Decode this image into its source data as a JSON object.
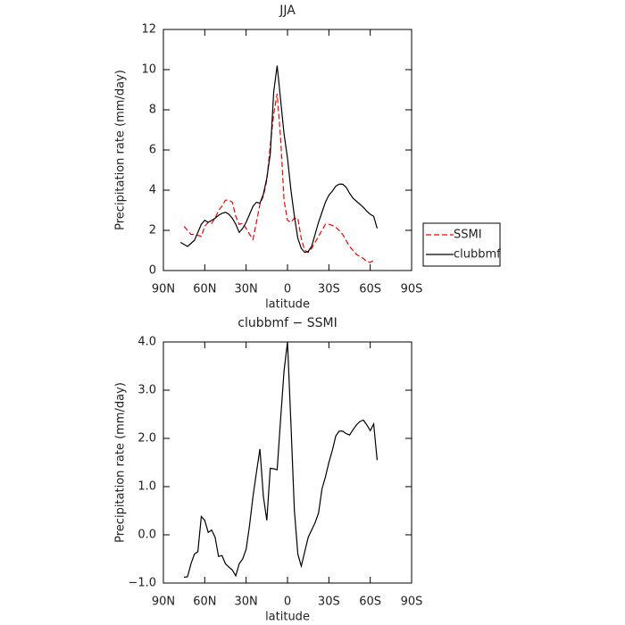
{
  "chart_data": [
    {
      "type": "line",
      "title": "JJA",
      "xlabel": "latitude",
      "ylabel": "Precipitation rate (mm/day)",
      "x": [
        77.5,
        75,
        72.5,
        70,
        67.5,
        65,
        62.5,
        60,
        57.5,
        55,
        52.5,
        50,
        47.5,
        45,
        42.5,
        40,
        37.5,
        35,
        32.5,
        30,
        27.5,
        25,
        22.5,
        20,
        17.5,
        15,
        12.5,
        10,
        7.5,
        5,
        2.5,
        0,
        -2.5,
        -5,
        -7.5,
        -10,
        -12.5,
        -15,
        -17.5,
        -20,
        -22.5,
        -25,
        -27.5,
        -30,
        -32.5,
        -35,
        -37.5,
        -40,
        -42.5,
        -45,
        -47.5,
        -50,
        -52.5,
        -55,
        -57.5,
        -60,
        -62.5,
        -65
      ],
      "series": [
        {
          "name": "SSMI",
          "color": "#ff0000",
          "linestyle": "dashed",
          "values": [
            null,
            2.2,
            2.0,
            1.8,
            1.8,
            1.75,
            1.7,
            2.2,
            2.4,
            2.35,
            2.6,
            3.0,
            3.2,
            3.5,
            3.5,
            3.4,
            2.7,
            2.3,
            2.35,
            2.1,
            1.8,
            1.55,
            2.4,
            3.3,
            3.7,
            4.5,
            6.2,
            7.8,
            8.8,
            6.6,
            3.5,
            2.5,
            2.4,
            2.6,
            2.6,
            1.6,
            1.0,
            0.9,
            1.1,
            1.4,
            1.7,
            2.0,
            2.3,
            2.3,
            2.25,
            2.15,
            2.0,
            1.8,
            1.5,
            1.2,
            1.0,
            0.8,
            0.7,
            0.6,
            0.45,
            0.4,
            0.5,
            null
          ]
        },
        {
          "name": "clubbmf",
          "color": "#000000",
          "linestyle": "solid",
          "values": [
            1.4,
            1.3,
            1.2,
            1.35,
            1.5,
            1.9,
            2.3,
            2.5,
            2.4,
            2.5,
            2.6,
            2.75,
            2.85,
            2.9,
            2.8,
            2.6,
            2.3,
            1.9,
            2.1,
            2.4,
            2.8,
            3.2,
            3.4,
            3.35,
            3.8,
            4.6,
            5.8,
            8.9,
            10.2,
            8.5,
            6.8,
            5.6,
            4.0,
            2.7,
            1.6,
            1.1,
            0.9,
            0.95,
            1.2,
            1.8,
            2.4,
            2.9,
            3.4,
            3.75,
            3.95,
            4.2,
            4.3,
            4.3,
            4.15,
            3.85,
            3.6,
            3.45,
            3.3,
            3.15,
            2.95,
            2.8,
            2.7,
            2.1
          ]
        }
      ],
      "xlim": [
        90,
        -90
      ],
      "xticks": [
        {
          "value": 90,
          "label": "90N"
        },
        {
          "value": 60,
          "label": "60N"
        },
        {
          "value": 30,
          "label": "30N"
        },
        0,
        {
          "value": -30,
          "label": "30S"
        },
        {
          "value": -60,
          "label": "60S"
        },
        {
          "value": -90,
          "label": "90S"
        }
      ],
      "ylim": [
        0,
        12
      ],
      "yticks": [
        0,
        2,
        4,
        6,
        8,
        10,
        12
      ],
      "legend": "right"
    },
    {
      "type": "line",
      "title": "clubbmf − SSMI",
      "xlabel": "latitude",
      "ylabel": "Precipitation rate (mm/day)",
      "x": [
        77.5,
        75,
        72.5,
        70,
        67.5,
        65,
        62.5,
        60,
        57.5,
        55,
        52.5,
        50,
        47.5,
        45,
        42.5,
        40,
        37.5,
        35,
        32.5,
        30,
        27.5,
        25,
        22.5,
        20,
        17.5,
        15,
        12.5,
        10,
        7.5,
        5,
        2.5,
        0,
        -2.5,
        -5,
        -7.5,
        -10,
        -12.5,
        -15,
        -17.5,
        -20,
        -22.5,
        -25,
        -27.5,
        -30,
        -32.5,
        -35,
        -37.5,
        -40,
        -42.5,
        -45,
        -47.5,
        -50,
        -52.5,
        -55,
        -57.5,
        -60,
        -62.5,
        -65
      ],
      "series": [
        {
          "color": "#000000",
          "linestyle": "solid",
          "values": [
            null,
            -0.88,
            -0.87,
            -0.6,
            -0.4,
            -0.35,
            0.38,
            0.3,
            0.05,
            0.1,
            -0.05,
            -0.45,
            -0.43,
            -0.6,
            -0.67,
            -0.73,
            -0.85,
            -0.6,
            -0.5,
            -0.3,
            0.2,
            0.8,
            1.3,
            1.78,
            0.8,
            0.3,
            1.38,
            1.37,
            1.35,
            2.4,
            3.4,
            4.0,
            2.3,
            0.5,
            -0.4,
            -0.65,
            -0.35,
            -0.05,
            0.1,
            0.25,
            0.45,
            0.95,
            1.2,
            1.5,
            1.75,
            2.05,
            2.15,
            2.15,
            2.1,
            2.07,
            2.18,
            2.28,
            2.35,
            2.38,
            2.28,
            2.16,
            2.3,
            1.55
          ]
        }
      ],
      "xlim": [
        90,
        -90
      ],
      "xticks": [
        {
          "value": 90,
          "label": "90N"
        },
        {
          "value": 60,
          "label": "60N"
        },
        {
          "value": 30,
          "label": "30N"
        },
        0,
        {
          "value": -30,
          "label": "30S"
        },
        {
          "value": -60,
          "label": "60S"
        },
        {
          "value": -90,
          "label": "90S"
        }
      ],
      "ylim": [
        -1,
        4
      ],
      "yticks": [
        {
          "value": -1,
          "label": "−1.0"
        },
        {
          "value": 0,
          "label": "0.0"
        },
        {
          "value": 1,
          "label": "1.0"
        },
        {
          "value": 2,
          "label": "2.0"
        },
        {
          "value": 3,
          "label": "3.0"
        },
        {
          "value": 4,
          "label": "4.0"
        }
      ]
    }
  ]
}
